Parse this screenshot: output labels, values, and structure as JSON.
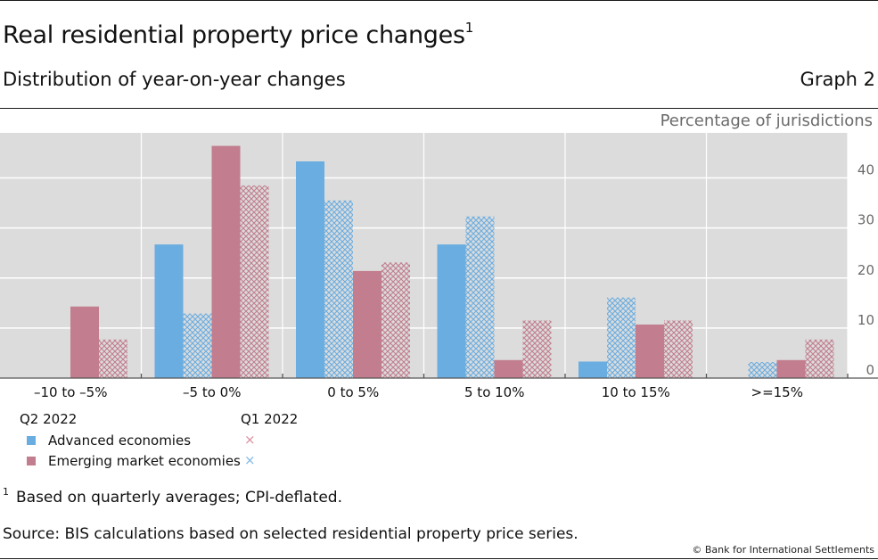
{
  "header": {
    "title": "Real residential property price changes",
    "title_footnote_ref": "1",
    "subtitle": "Distribution of year-on-year changes",
    "graph_number": "Graph 2",
    "unit_label": "Percentage of jurisdictions"
  },
  "colors": {
    "advanced": "#6aade0",
    "emerging": "#c27d8e",
    "plot_background": "#dcdcdc",
    "gridline": "#ffffff"
  },
  "legend": {
    "group_q2": "Q2 2022",
    "group_q1": "Q1 2022",
    "items": [
      {
        "label": "Advanced economies",
        "q2_color": "#6aade0",
        "q1_marker_color": "#d98fa0",
        "q1_marker": "×"
      },
      {
        "label": "Emerging market economies",
        "q2_color": "#c27d8e",
        "q1_marker_color": "#7fb8e6",
        "q1_marker": "×"
      }
    ]
  },
  "chart_data": {
    "type": "bar",
    "title": "Real residential property price changes",
    "subtitle": "Distribution of year-on-year changes",
    "xlabel": "",
    "ylabel": "Percentage of jurisdictions",
    "ylim": [
      0,
      49
    ],
    "yticks": [
      0,
      10,
      20,
      30,
      40
    ],
    "y_axis_side": "right",
    "grid": true,
    "legend_position": "bottom-left",
    "categories": [
      "–10 to –5%",
      "–5 to 0%",
      "0 to 5%",
      "5 to 10%",
      "10 to 15%",
      ">=15%"
    ],
    "series": [
      {
        "name": "Advanced economies (Q2 2022)",
        "style": "solid",
        "color": "#6aade0",
        "values": [
          0,
          26.7,
          43.3,
          26.7,
          3.3,
          0
        ]
      },
      {
        "name": "Advanced economies (Q1 2022)",
        "style": "hatched",
        "color": "#6aade0",
        "values": [
          0,
          12.9,
          35.5,
          32.3,
          16.1,
          3.2
        ]
      },
      {
        "name": "Emerging market economies (Q2 2022)",
        "style": "solid",
        "color": "#c27d8e",
        "values": [
          14.3,
          46.4,
          21.4,
          3.6,
          10.7,
          3.6
        ]
      },
      {
        "name": "Emerging market economies (Q1 2022)",
        "style": "hatched",
        "color": "#c27d8e",
        "values": [
          7.7,
          38.5,
          23.1,
          11.5,
          11.5,
          7.7
        ]
      }
    ]
  },
  "footer": {
    "footnote_marker": "1",
    "footnote": "Based on quarterly averages; CPI-deflated.",
    "source": "Source: BIS calculations based on selected residential property price series.",
    "copyright": "© Bank for International Settlements"
  }
}
